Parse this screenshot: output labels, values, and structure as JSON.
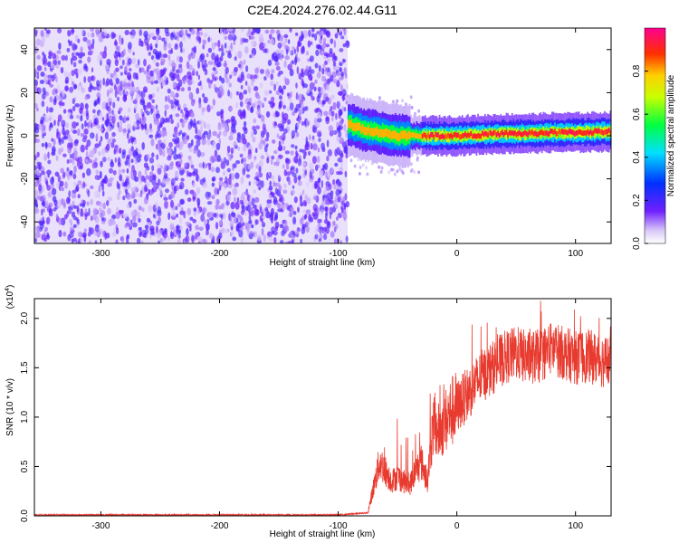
{
  "title": "C2E4.2024.276.02.44.G11",
  "chart_data": [
    {
      "type": "heatmap",
      "xlabel": "Height of straight line (km)",
      "ylabel": "Frequency (Hz)",
      "xlim": [
        -356,
        130
      ],
      "ylim": [
        -50,
        50
      ],
      "xticks": [
        -300,
        -200,
        -100,
        0,
        100
      ],
      "yticks": [
        -40,
        -20,
        0,
        20,
        40
      ],
      "colorbar": {
        "label": "Normalized spectral amplitude",
        "range": [
          0,
          1
        ],
        "ticks": [
          "0.0",
          "0.2",
          "0.4",
          "0.6",
          "0.8"
        ]
      },
      "regions": [
        {
          "x_from": -356,
          "x_to": -92,
          "frequency_band": [
            -50,
            50
          ],
          "amplitude": [
            0.05,
            0.2
          ]
        },
        {
          "x_from": -92,
          "x_to": 130,
          "frequency_band": [
            -3,
            6
          ],
          "peak_amplitude": 0.95
        }
      ],
      "ridge": {
        "x": [
          -90,
          -80,
          -70,
          -60,
          -50,
          -40,
          -30,
          -20,
          -10,
          0,
          20,
          40,
          60,
          80,
          100,
          130
        ],
        "frequency": [
          5,
          3,
          2,
          1,
          0,
          0,
          0,
          0,
          0,
          0,
          0.5,
          1,
          1,
          1.5,
          1.5,
          2
        ]
      }
    },
    {
      "type": "line",
      "xlabel": "Height of straight line (km)",
      "ylabel": "SNR (10 * v/v)",
      "yscale_label": "(x10",
      "yscale_exponent": "4",
      "xlim": [
        -356,
        130
      ],
      "ylim": [
        0,
        2.2
      ],
      "xticks": [
        -300,
        -200,
        -100,
        0,
        100
      ],
      "yticks": [
        "0.0",
        "0.5",
        "1.0",
        "1.5",
        "2.0"
      ],
      "color": "#e83a2e",
      "series": [
        {
          "x": [
            -356,
            -100,
            -75,
            -70,
            -65,
            -60,
            -55,
            -50,
            -45,
            -40,
            -35,
            -30,
            -25,
            -20,
            -15,
            -10,
            -5,
            0,
            10,
            20,
            30,
            40,
            50,
            60,
            70,
            80,
            90,
            100,
            110,
            120,
            130
          ],
          "values": [
            0.01,
            0.01,
            0.03,
            0.3,
            0.55,
            0.45,
            0.35,
            0.4,
            0.35,
            0.3,
            0.45,
            0.55,
            0.35,
            0.9,
            0.85,
            0.95,
            1.05,
            1.1,
            1.25,
            1.4,
            1.5,
            1.6,
            1.65,
            1.6,
            1.62,
            1.7,
            1.65,
            1.6,
            1.62,
            1.58,
            1.55
          ]
        }
      ]
    }
  ]
}
